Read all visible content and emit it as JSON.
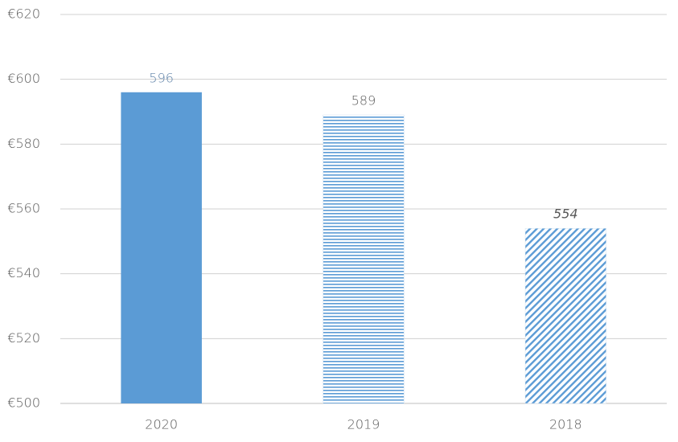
{
  "chart_data": {
    "type": "bar",
    "categories": [
      "2020",
      "2019",
      "2018"
    ],
    "values": [
      596,
      589,
      554
    ],
    "color": "#5b9bd5",
    "patterns": [
      "solid",
      "horizontal",
      "diagonal"
    ],
    "ylim": [
      500,
      620
    ],
    "yticks": [
      {
        "value": 500,
        "label": "€500"
      },
      {
        "value": 520,
        "label": "€520"
      },
      {
        "value": 540,
        "label": "€540"
      },
      {
        "value": 560,
        "label": "€560"
      },
      {
        "value": 580,
        "label": "€580"
      },
      {
        "value": 600,
        "label": "€600"
      },
      {
        "value": 620,
        "label": "€620"
      }
    ],
    "grid": true
  }
}
